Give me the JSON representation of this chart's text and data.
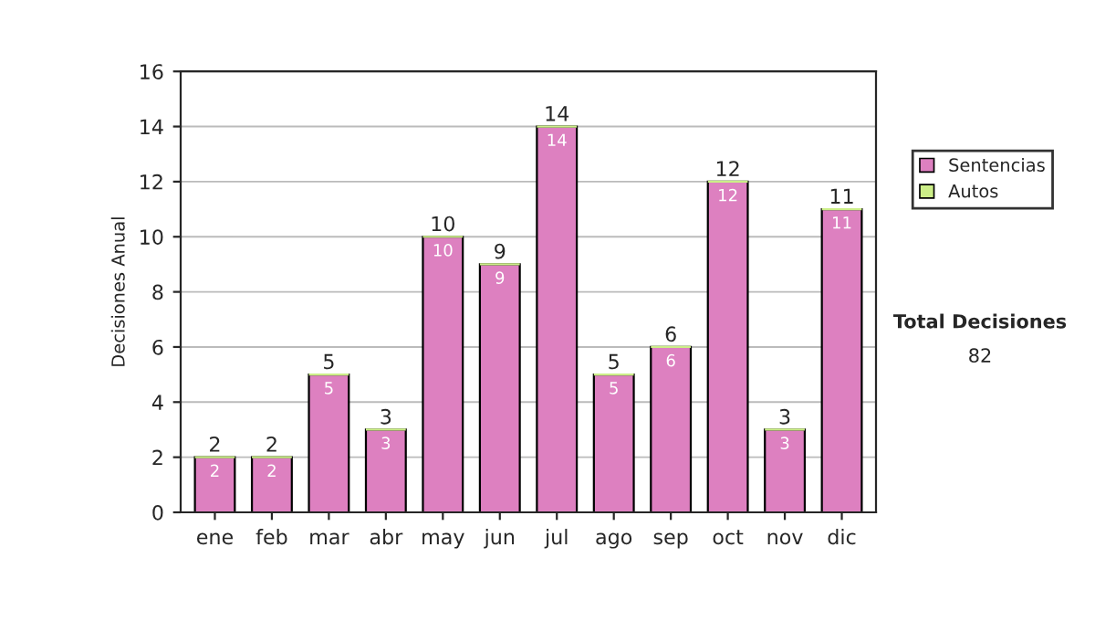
{
  "chart_data": {
    "type": "bar",
    "stacked": true,
    "ylabel": "Decisiones Anual",
    "categories": [
      "ene",
      "feb",
      "mar",
      "abr",
      "may",
      "jun",
      "jul",
      "ago",
      "sep",
      "oct",
      "nov",
      "dic"
    ],
    "series": [
      {
        "name": "Sentencias",
        "color": "#dd80c0",
        "values": [
          2,
          2,
          5,
          3,
          10,
          9,
          14,
          5,
          6,
          12,
          3,
          11
        ],
        "value_labels": [
          "2",
          "2",
          "5",
          "3",
          "10",
          "9",
          "14",
          "5",
          "6",
          "12",
          "3",
          "11"
        ]
      },
      {
        "name": "Autos",
        "color": "#ccee88",
        "values": [
          0,
          0,
          0,
          0,
          0,
          0,
          0,
          0,
          0,
          0,
          0,
          0
        ]
      }
    ],
    "totals": [
      "2",
      "2",
      "5",
      "3",
      "10",
      "9",
      "14",
      "5",
      "6",
      "12",
      "3",
      "11"
    ],
    "ylim": [
      0,
      16
    ],
    "yticks": [
      0,
      2,
      4,
      6,
      8,
      10,
      12,
      14,
      16
    ],
    "grid": "y",
    "legend": "right",
    "annotations": [
      "Total Decisiones",
      "82"
    ]
  }
}
